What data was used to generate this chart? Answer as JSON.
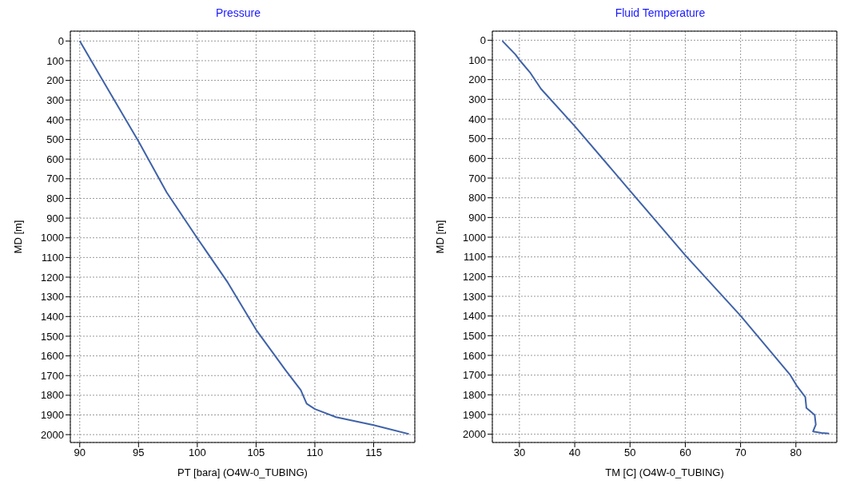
{
  "chart_data": [
    {
      "type": "line",
      "title": "Pressure",
      "xlabel": "PT [bara] (O4W-0_TUBING)",
      "ylabel": "MD [m]",
      "grid": true,
      "line_style": "solid",
      "marker": "none",
      "xlim": [
        89.2,
        118.5
      ],
      "xticks": [
        90,
        95,
        100,
        105,
        110,
        115
      ],
      "ylim": [
        2040,
        -50
      ],
      "yticks": [
        0,
        100,
        200,
        300,
        400,
        500,
        600,
        700,
        800,
        900,
        1000,
        1100,
        1200,
        1300,
        1400,
        1500,
        1600,
        1700,
        1800,
        1900,
        2000
      ],
      "series": [
        {
          "color": "#3f62a8",
          "x": [
            90,
            91.9,
            95,
            97.4,
            100,
            102.6,
            105,
            107.5,
            108.8,
            109.3,
            110,
            111.8,
            115,
            118
          ],
          "values": [
            0,
            195,
            510,
            770,
            1002,
            1228,
            1467,
            1672,
            1774,
            1843,
            1870,
            1911,
            1952,
            1997
          ]
        }
      ]
    },
    {
      "type": "line",
      "title": "Fluid Temperature",
      "xlabel": "TM [C] (O4W-0_TUBING)",
      "ylabel": "MD [m]",
      "grid": true,
      "line_style": "solid",
      "marker": "none",
      "xlim": [
        25.1,
        87.4
      ],
      "xticks": [
        30,
        40,
        50,
        60,
        70,
        80
      ],
      "ylim": [
        2042,
        -46
      ],
      "yticks": [
        0,
        100,
        200,
        300,
        400,
        500,
        600,
        700,
        800,
        900,
        1000,
        1100,
        1200,
        1300,
        1400,
        1500,
        1600,
        1700,
        1800,
        1900,
        2000
      ],
      "series": [
        {
          "color": "#3f62a8",
          "x": [
            26.9,
            29.3,
            30,
            31.9,
            33.9,
            40,
            50,
            60,
            70,
            79,
            80.2,
            81.7,
            81.9,
            83.4,
            83.6,
            83.1,
            84.6,
            86
          ],
          "values": [
            3,
            73,
            100,
            163,
            247,
            436,
            764,
            1092,
            1399,
            1700,
            1756,
            1811,
            1867,
            1902,
            1951,
            1986,
            1993,
            1996
          ]
        }
      ]
    }
  ]
}
